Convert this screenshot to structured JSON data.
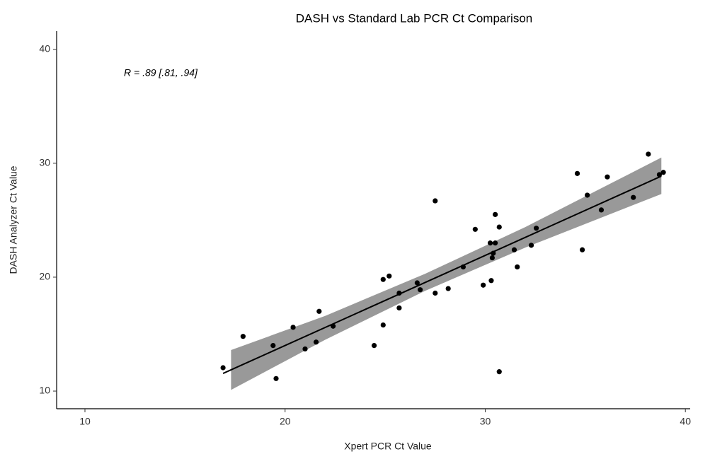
{
  "chart_data": {
    "type": "scatter",
    "title": "DASH vs Standard Lab PCR Ct Comparison",
    "x_label": "Xpert PCR Ct Value",
    "y_label": "DASH Analyzer Ct Value",
    "annotation": "R = .89 [.81, .94]",
    "xlim": [
      8.585,
      40.24
    ],
    "ylim": [
      8.45,
      41.6
    ],
    "xticks": [
      10,
      20,
      30,
      40
    ],
    "yticks": [
      10,
      20,
      30,
      40
    ],
    "grid": false,
    "point_color": "#000000",
    "line_color": "#000000",
    "band_color": "#999999",
    "points": {
      "x": [
        16.9,
        17.9,
        19.4,
        19.55,
        20.4,
        21.0,
        21.55,
        21.7,
        22.4,
        24.45,
        24.9,
        24.9,
        25.2,
        25.7,
        25.7,
        26.6,
        26.75,
        27.5,
        27.5,
        28.15,
        28.9,
        29.5,
        29.9,
        30.25,
        30.3,
        30.35,
        30.4,
        30.5,
        30.5,
        30.7,
        30.7,
        31.45,
        31.6,
        32.3,
        32.55,
        34.85,
        34.6,
        35.1,
        35.8,
        36.1,
        37.4,
        38.15,
        38.7,
        38.9
      ],
      "y": [
        12.05,
        14.8,
        14.0,
        11.1,
        15.6,
        13.7,
        14.3,
        17.0,
        15.7,
        14.0,
        15.8,
        19.8,
        20.1,
        18.6,
        17.3,
        19.5,
        18.9,
        26.7,
        18.6,
        19.0,
        20.9,
        24.2,
        19.3,
        23.0,
        19.7,
        21.7,
        22.1,
        25.5,
        23.0,
        24.4,
        11.7,
        22.4,
        20.9,
        22.8,
        24.3,
        22.4,
        29.1,
        27.2,
        25.9,
        28.8,
        27.0,
        30.8,
        29.0,
        29.2
      ]
    },
    "fit": {
      "x": [
        16.9,
        38.8
      ],
      "y": [
        11.55,
        28.87
      ]
    },
    "band": {
      "x": [
        17.3,
        22,
        27,
        32,
        38.8
      ],
      "lower": [
        10.1,
        14.5,
        18.8,
        22.6,
        27.3
      ],
      "upper": [
        13.6,
        16.6,
        20.3,
        24.4,
        30.5
      ]
    }
  }
}
